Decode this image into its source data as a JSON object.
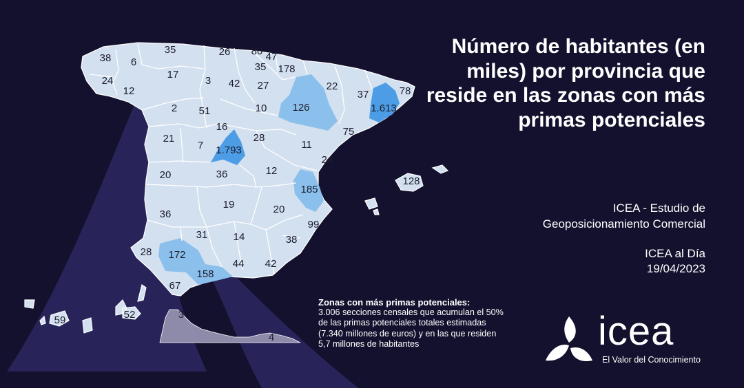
{
  "title": "Número de habitantes (en miles) por provincia que reside en las zonas con más primas potenciales",
  "source": {
    "line1": "ICEA - Estudio de",
    "line2": "Geoposicionamiento Comercial",
    "publication": "ICEA al Día",
    "date": "19/04/2023"
  },
  "note": {
    "title": "Zonas con más primas potenciales:",
    "line1": "3.006 secciones censales que acumulan el 50%",
    "line2": "de las primas potenciales totales estimadas",
    "line3": "(7.340 millones de euros) y en las que residen",
    "line4": "5,7 millones de habitantes"
  },
  "logo": {
    "wordmark": "icea",
    "tagline": "El Valor del Conocimiento"
  },
  "colors": {
    "background": "#14112e",
    "province_fill": "#d3e0ef",
    "province_border": "#ffffff",
    "highlight_medium": "#8cc0ec",
    "highlight_strong": "#4d9de6",
    "label": "#1c1d2e"
  },
  "provinces": [
    {
      "id": "a-coruna",
      "value": "38"
    },
    {
      "id": "lugo",
      "value": "6"
    },
    {
      "id": "pontevedra",
      "value": "24"
    },
    {
      "id": "ourense",
      "value": "12"
    },
    {
      "id": "asturias",
      "value": "35"
    },
    {
      "id": "cantabria",
      "value": "26"
    },
    {
      "id": "bizkaia",
      "value": "80"
    },
    {
      "id": "gipuzkoa",
      "value": "47"
    },
    {
      "id": "araba",
      "value": "35"
    },
    {
      "id": "navarra",
      "value": "178"
    },
    {
      "id": "leon",
      "value": "17"
    },
    {
      "id": "palencia",
      "value": "3"
    },
    {
      "id": "burgos",
      "value": "42"
    },
    {
      "id": "la-rioja",
      "value": "27"
    },
    {
      "id": "zamora",
      "value": "2"
    },
    {
      "id": "valladolid",
      "value": "51"
    },
    {
      "id": "soria",
      "value": "10"
    },
    {
      "id": "zaragoza",
      "value": "126",
      "level": "medium"
    },
    {
      "id": "huesca",
      "value": "22"
    },
    {
      "id": "lleida",
      "value": "37"
    },
    {
      "id": "girona",
      "value": "78"
    },
    {
      "id": "barcelona",
      "value": "1.613",
      "level": "strong"
    },
    {
      "id": "tarragona",
      "value": "75"
    },
    {
      "id": "salamanca",
      "value": "21"
    },
    {
      "id": "avila",
      "value": "7"
    },
    {
      "id": "segovia",
      "value": "16"
    },
    {
      "id": "madrid",
      "value": "1.793",
      "level": "strong"
    },
    {
      "id": "guadalajara",
      "value": "28"
    },
    {
      "id": "teruel",
      "value": "11"
    },
    {
      "id": "castellon",
      "value": "24"
    },
    {
      "id": "caceres",
      "value": "20"
    },
    {
      "id": "toledo",
      "value": "36"
    },
    {
      "id": "cuenca",
      "value": "12"
    },
    {
      "id": "valencia",
      "value": "185",
      "level": "medium"
    },
    {
      "id": "badajoz",
      "value": "36"
    },
    {
      "id": "ciudad-real",
      "value": "19"
    },
    {
      "id": "albacete",
      "value": "20"
    },
    {
      "id": "alicante",
      "value": "99"
    },
    {
      "id": "cordoba",
      "value": "31"
    },
    {
      "id": "jaen",
      "value": "14"
    },
    {
      "id": "murcia",
      "value": "38"
    },
    {
      "id": "huelva",
      "value": "28"
    },
    {
      "id": "sevilla",
      "value": "172",
      "level": "medium"
    },
    {
      "id": "malaga",
      "value": "158",
      "level": "medium"
    },
    {
      "id": "granada",
      "value": "44"
    },
    {
      "id": "almeria",
      "value": "42"
    },
    {
      "id": "cadiz",
      "value": "67"
    },
    {
      "id": "baleares",
      "value": "128"
    },
    {
      "id": "las-palmas",
      "value": "52"
    },
    {
      "id": "sc-tenerife",
      "value": "59"
    },
    {
      "id": "ceuta",
      "value": "3"
    },
    {
      "id": "melilla",
      "value": "4"
    }
  ]
}
